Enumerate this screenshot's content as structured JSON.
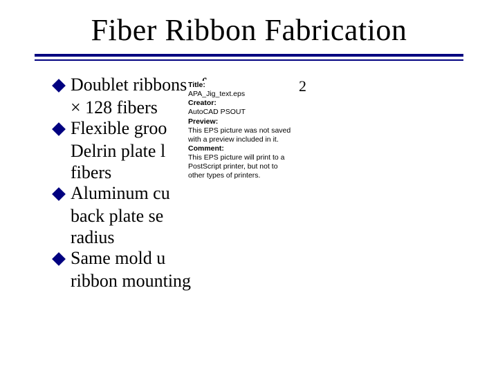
{
  "title": "Fiber Ribbon Fabrication",
  "colors": {
    "rule": "#000080",
    "bullet": "#000080",
    "bg": "#ffffff",
    "text": "#000000"
  },
  "bullets": [
    {
      "lines": [
        "Doublet ribbons of",
        "  128 fibers"
      ]
    },
    {
      "lines": [
        "Flexible groo",
        "Delrin plate l",
        "fibers"
      ]
    },
    {
      "lines": [
        "Aluminum cu",
        "back plate se",
        "radius"
      ]
    },
    {
      "lines": [
        "Same mold u",
        "ribbon mounting"
      ]
    }
  ],
  "lonely_two": "2",
  "mult_sign": "×",
  "overlay": {
    "title_label": "Title:",
    "title_value": "APA_Jig_text.eps",
    "creator_label": "Creator:",
    "creator_value": "AutoCAD PSOUT",
    "preview_label": "Preview:",
    "preview_value1": "This EPS picture was not saved",
    "preview_value2": "with a preview included in it.",
    "comment_label": "Comment:",
    "comment_value1": "This EPS picture will print to a",
    "comment_value2": "PostScript printer, but not to",
    "comment_value3": "other types of printers."
  }
}
